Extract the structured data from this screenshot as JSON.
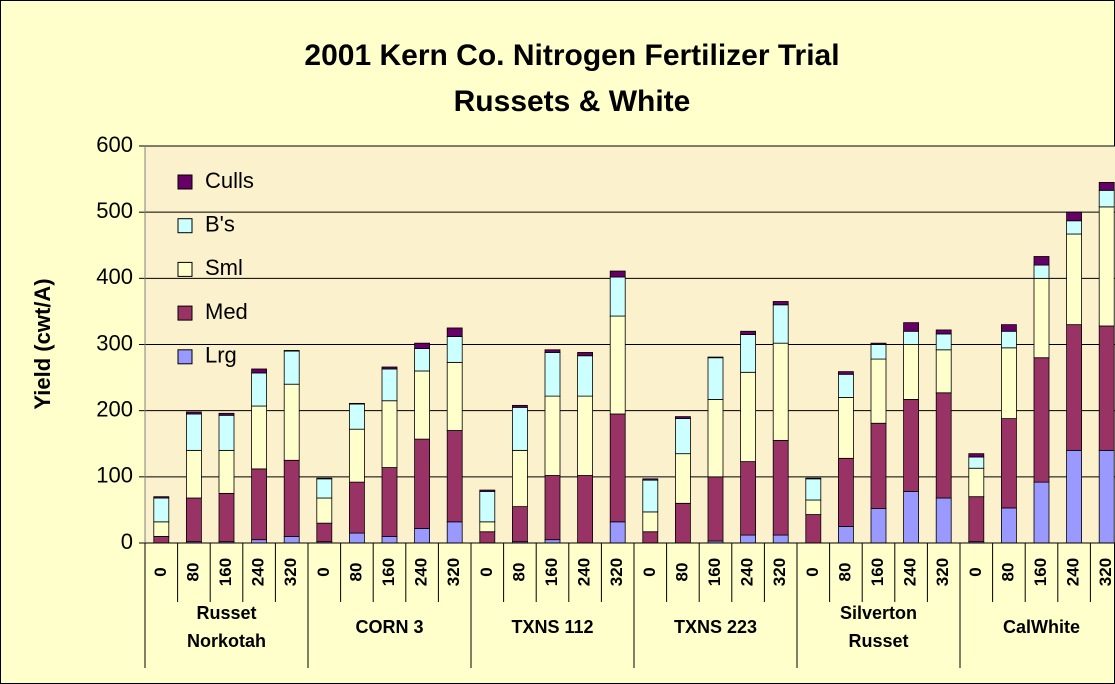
{
  "chart_data": {
    "type": "stacked-bar",
    "title": "2001 Kern Co. Nitrogen Fertilizer Trial",
    "subtitle": "Russets & White",
    "y_label": "Yield (cwt/A)",
    "categories": [
      "0",
      "80",
      "160",
      "240",
      "320",
      "0",
      "80",
      "160",
      "240",
      "320",
      "0",
      "80",
      "160",
      "240",
      "320",
      "0",
      "80",
      "160",
      "240",
      "320",
      "0",
      "80",
      "160",
      "240",
      "320",
      "0",
      "80",
      "160",
      "240",
      "320"
    ],
    "groups": [
      [
        "Russet",
        "Norkotah"
      ],
      [
        "CORN 3"
      ],
      [
        "TXNS 112"
      ],
      [
        "TXNS 223"
      ],
      [
        "Silverton",
        "Russet"
      ],
      [
        "CalWhite"
      ]
    ],
    "group_size": 5,
    "series": [
      {
        "name": "Lrg",
        "color": "#9999ff",
        "values": [
          0,
          2,
          2,
          5,
          10,
          2,
          15,
          10,
          22,
          32,
          0,
          2,
          5,
          0,
          32,
          0,
          0,
          3,
          12,
          12,
          0,
          25,
          52,
          78,
          68,
          2,
          53,
          92,
          140,
          140
        ]
      },
      {
        "name": "Med",
        "color": "#993366",
        "values": [
          10,
          66,
          73,
          107,
          115,
          28,
          77,
          104,
          135,
          138,
          17,
          53,
          97,
          102,
          163,
          17,
          60,
          97,
          111,
          143,
          43,
          103,
          129,
          139,
          159,
          68,
          135,
          188,
          190,
          188
        ]
      },
      {
        "name": "Sml",
        "color": "#ffffcc",
        "values": [
          22,
          72,
          65,
          95,
          115,
          38,
          80,
          101,
          103,
          103,
          15,
          85,
          120,
          120,
          148,
          30,
          75,
          117,
          135,
          147,
          22,
          92,
          97,
          83,
          65,
          43,
          107,
          120,
          137,
          180
        ]
      },
      {
        "name": "B's",
        "color": "#ccffff",
        "values": [
          36,
          55,
          53,
          50,
          50,
          29,
          38,
          48,
          34,
          39,
          46,
          65,
          66,
          61,
          59,
          48,
          53,
          63,
          57,
          58,
          32,
          35,
          22,
          20,
          24,
          17,
          25,
          20,
          20,
          25
        ]
      },
      {
        "name": "Culls",
        "color": "#660066",
        "values": [
          2,
          3,
          3,
          6,
          1,
          1,
          1,
          3,
          8,
          13,
          2,
          3,
          4,
          5,
          9,
          2,
          3,
          1,
          5,
          5,
          1,
          4,
          2,
          13,
          6,
          5,
          10,
          13,
          13,
          12
        ]
      }
    ],
    "ylim": [
      0,
      600
    ],
    "yticks": [
      0,
      100,
      200,
      300,
      400,
      500,
      600
    ],
    "grid": true,
    "legend": "top-left"
  }
}
